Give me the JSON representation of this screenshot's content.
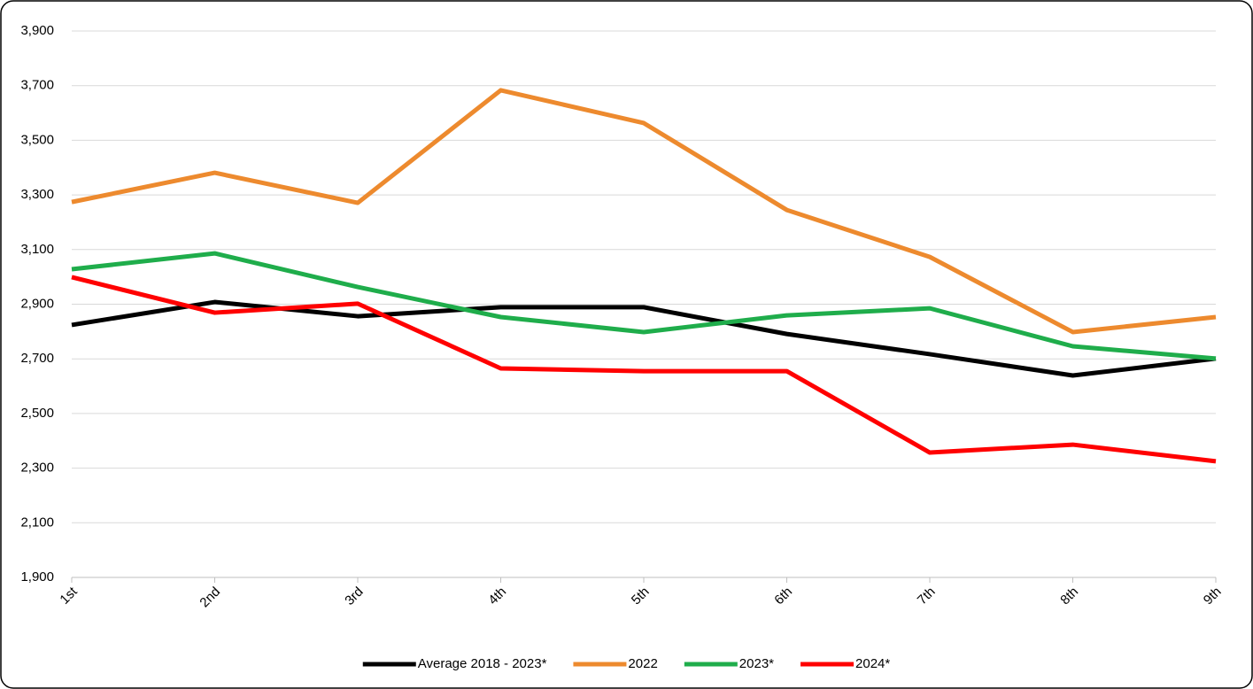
{
  "chart_data": {
    "type": "line",
    "categories": [
      "1st",
      "2nd",
      "3rd",
      "4th",
      "5th",
      "6th",
      "7th",
      "8th",
      "9th"
    ],
    "series": [
      {
        "name": "Average 2018 - 2023*",
        "color": "#000000",
        "values": [
          2824,
          2908,
          2856,
          2889,
          2889,
          2791,
          2717,
          2639,
          2701
        ]
      },
      {
        "name": "2022",
        "color": "#ed8a2e",
        "values": [
          3274,
          3381,
          3271,
          3683,
          3563,
          3245,
          3073,
          2798,
          2853
        ]
      },
      {
        "name": "2023*",
        "color": "#1fad4b",
        "values": [
          3028,
          3086,
          2963,
          2853,
          2798,
          2859,
          2885,
          2746,
          2701
        ]
      },
      {
        "name": "2024*",
        "color": "#ff0000",
        "values": [
          2999,
          2869,
          2902,
          2665,
          2655,
          2655,
          2357,
          2386,
          2325
        ]
      }
    ],
    "ylim": [
      1900,
      3900
    ],
    "yticks": [
      {
        "value": 1900,
        "label": "1,900"
      },
      {
        "value": 2100,
        "label": "2,100"
      },
      {
        "value": 2300,
        "label": "2,300"
      },
      {
        "value": 2500,
        "label": "2,500"
      },
      {
        "value": 2700,
        "label": "2,700"
      },
      {
        "value": 2900,
        "label": "2,900"
      },
      {
        "value": 3100,
        "label": "3,100"
      },
      {
        "value": 3300,
        "label": "3,300"
      },
      {
        "value": 3500,
        "label": "3,500"
      },
      {
        "value": 3700,
        "label": "3,700"
      },
      {
        "value": 3900,
        "label": "3,900"
      }
    ],
    "grid": true,
    "legend": "bottom"
  }
}
